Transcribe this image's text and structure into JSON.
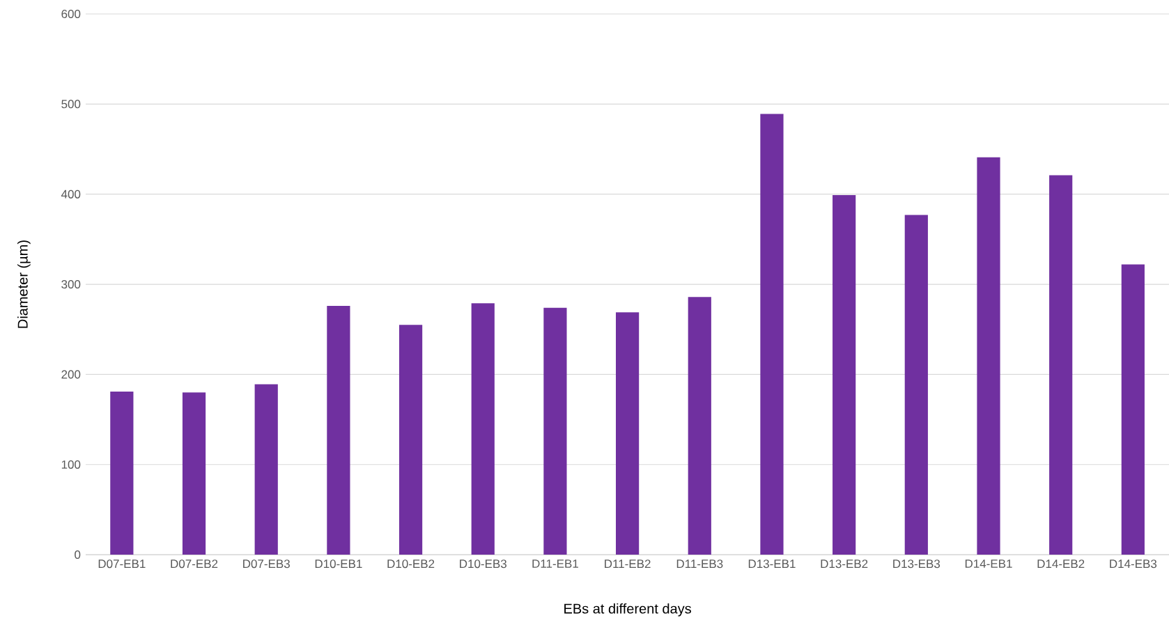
{
  "chart_data": {
    "type": "bar",
    "xlabel": "EBs at different days",
    "ylabel": "Diameter (µm)",
    "categories": [
      "D07-EB1",
      "D07-EB2",
      "D07-EB3",
      "D10-EB1",
      "D10-EB2",
      "D10-EB3",
      "D11-EB1",
      "D11-EB2",
      "D11-EB3",
      "D13-EB1",
      "D13-EB2",
      "D13-EB3",
      "D14-EB1",
      "D14-EB2",
      "D14-EB3"
    ],
    "values": [
      181,
      180,
      189,
      276,
      255,
      279,
      274,
      269,
      286,
      489,
      399,
      377,
      441,
      421,
      322
    ],
    "color": "#7030a0",
    "ylim": [
      0,
      600
    ],
    "yticks": [
      0,
      100,
      200,
      300,
      400,
      500,
      600
    ],
    "grid": "y"
  }
}
